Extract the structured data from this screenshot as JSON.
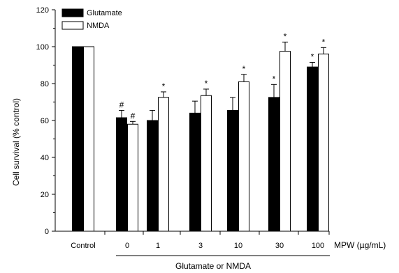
{
  "chart_data": {
    "type": "bar",
    "title": "",
    "ylabel": "Cell survival (% control)",
    "xlabel": "MPW (µg/mL)",
    "group_label": "Glutamate or NMDA",
    "categories": [
      "Control",
      "0",
      "1",
      "3",
      "10",
      "30",
      "100"
    ],
    "ylim": [
      0,
      120
    ],
    "yticks": [
      0,
      20,
      40,
      60,
      80,
      100,
      120
    ],
    "grid": false,
    "legend_position": "top-left",
    "series": [
      {
        "name": "Glutamate",
        "fill": "#000000",
        "values": [
          100,
          61.5,
          60,
          64,
          65.5,
          72.5,
          89
        ],
        "errors": [
          0,
          4,
          5.5,
          6.5,
          7,
          7,
          2.5
        ],
        "annotations": [
          "",
          "#",
          "",
          "",
          "",
          "*",
          "*"
        ]
      },
      {
        "name": "NMDA",
        "fill": "#ffffff",
        "values": [
          100,
          58,
          72.5,
          73.5,
          81,
          97.5,
          96
        ],
        "errors": [
          0,
          1.5,
          3,
          3.5,
          4,
          5,
          3.5
        ],
        "annotations": [
          "",
          "#",
          "*",
          "*",
          "*",
          "*",
          "*"
        ]
      }
    ]
  }
}
